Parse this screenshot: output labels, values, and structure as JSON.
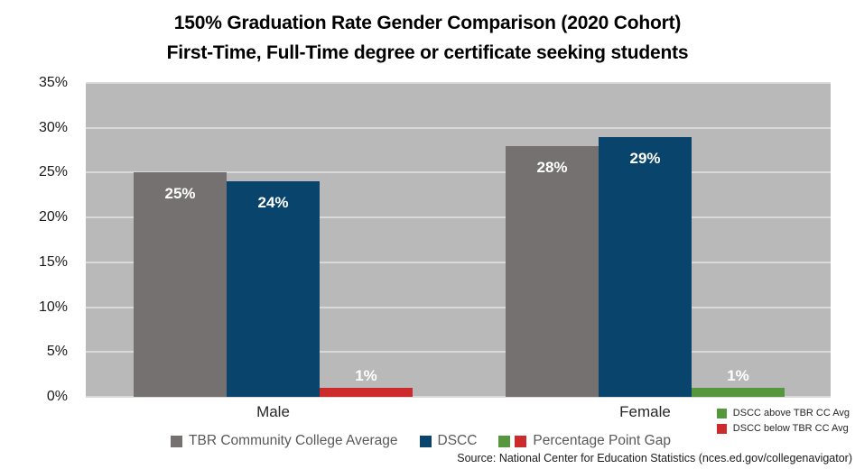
{
  "title": {
    "line1": "150% Graduation Rate Gender Comparison (2020 Cohort)",
    "line2": "First-Time, Full-Time degree or certificate seeking students"
  },
  "chart_data": {
    "type": "bar",
    "categories": [
      "Male",
      "Female"
    ],
    "series": [
      {
        "name": "TBR Community College Average",
        "values": [
          25,
          28
        ],
        "labels": [
          "25%",
          "28%"
        ],
        "colors": [
          "#757171",
          "#757171"
        ]
      },
      {
        "name": "DSCC",
        "values": [
          24,
          29
        ],
        "labels": [
          "24%",
          "29%"
        ],
        "colors": [
          "#09446C",
          "#09446C"
        ]
      },
      {
        "name": "Percentage Point Gap",
        "values": [
          1,
          1
        ],
        "labels": [
          "1%",
          "1%"
        ],
        "colors": [
          "#CD2B2B",
          "#56963D"
        ]
      }
    ],
    "ylim": [
      0,
      35
    ],
    "yticks": [
      {
        "value": 0,
        "label": "0%"
      },
      {
        "value": 5,
        "label": "5%"
      },
      {
        "value": 10,
        "label": "10%"
      },
      {
        "value": 15,
        "label": "15%"
      },
      {
        "value": 20,
        "label": "20%"
      },
      {
        "value": 25,
        "label": "25%"
      },
      {
        "value": 30,
        "label": "30%"
      },
      {
        "value": 35,
        "label": "35%"
      }
    ],
    "grid": true,
    "legend_position": "bottom",
    "plot_bg": "#B9B9B9",
    "gridline_color": "#D9D9D9",
    "bar_label_color": "#FFFFFF"
  },
  "legend": {
    "items": [
      {
        "label": "TBR Community College Average",
        "swatches": [
          "#757171"
        ]
      },
      {
        "label": "DSCC",
        "swatches": [
          "#09446C"
        ]
      },
      {
        "label": "Percentage Point Gap",
        "swatches": [
          "#56963D",
          "#CD2B2B"
        ]
      }
    ]
  },
  "side_legend": {
    "items": [
      {
        "label": "DSCC above TBR CC Avg",
        "color": "#56963D"
      },
      {
        "label": "DSCC below TBR CC Avg",
        "color": "#CD2B2B"
      }
    ]
  },
  "source": "Source: National Center for Education Statistics (nces.ed.gov/collegenavigator)"
}
